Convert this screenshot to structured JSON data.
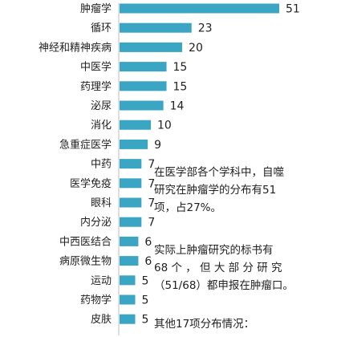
{
  "chart_data": {
    "type": "bar",
    "orientation": "horizontal",
    "categories": [
      "肿瘤学",
      "循环",
      "神经和精神疾病",
      "中医学",
      "药理学",
      "泌尿",
      "消化",
      "急重症医学",
      "中药",
      "医学免疫",
      "眼科",
      "内分泌",
      "中西医结合",
      "病原微生物",
      "运动",
      "药物学",
      "皮肤"
    ],
    "values": [
      51,
      23,
      20,
      15,
      15,
      14,
      10,
      9,
      7,
      7,
      7,
      7,
      6,
      6,
      5,
      5,
      5
    ],
    "bar_color": "#3aa6c4",
    "xlim": [
      0,
      51
    ],
    "grid": false,
    "legend": "none"
  },
  "annotations": [
    {
      "lines": [
        "在医学部各个学科中，自噬",
        "研究在肿瘤学的分布有51",
        "项，占27%。"
      ]
    },
    {
      "lines": [
        "实际上肿瘤研究的标书有",
        "68 个 ， 但 大 部 分 研 究",
        "（51/68）都申报在肿瘤口。"
      ]
    },
    {
      "lines": [
        "其他17项分布情况："
      ]
    }
  ]
}
